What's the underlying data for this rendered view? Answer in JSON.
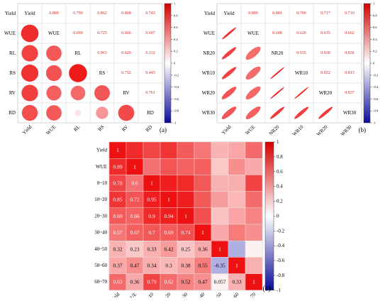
{
  "chart_data": [
    {
      "type": "heatmap",
      "panel_label": "(a)",
      "variables": [
        "Yield",
        "WUE",
        "RL",
        "RS",
        "RV",
        "RD"
      ],
      "upper_style": "numbers",
      "lower_style": "circles",
      "matrix": [
        [
          1,
          0.889,
          0.799,
          0.862,
          0.808,
          0.743
        ],
        [
          0.889,
          1,
          0.699,
          0.725,
          0.666,
          0.697
        ],
        [
          0.799,
          0.699,
          1,
          0.963,
          0.626,
          0.112
        ],
        [
          0.862,
          0.725,
          0.963,
          1,
          0.712,
          0.443
        ],
        [
          0.808,
          0.666,
          0.626,
          0.712,
          1,
          0.761
        ],
        [
          0.743,
          0.697,
          0.112,
          0.443,
          0.761,
          1
        ]
      ],
      "upper_labels": [
        [
          "0.889",
          "0.799",
          "0.862",
          "0.808",
          "0.743"
        ],
        [
          "0.699",
          "0.725",
          "0.666",
          "0.697"
        ],
        [
          "0.963",
          "0.626",
          "0.112"
        ],
        [
          "0.712",
          "0.443"
        ],
        [
          "0.761"
        ]
      ],
      "colorbar_ticks": [
        "1",
        "0.8",
        "0.6",
        "0.4",
        "0.2",
        "0",
        "-0.2",
        "-0.4",
        "-0.6",
        "-0.8",
        "-1"
      ],
      "color_range": [
        -1,
        1
      ]
    },
    {
      "type": "heatmap",
      "panel_label": "(b)",
      "variables": [
        "Yield",
        "WUE",
        "NR20",
        "WR10",
        "WR20",
        "WR30"
      ],
      "upper_style": "numbers",
      "lower_style": "ellipses",
      "matrix": [
        [
          1,
          0.889,
          0.801,
          0.79,
          0.717,
          0.71
        ],
        [
          0.889,
          1,
          0.608,
          0.62,
          0.635,
          0.662
        ],
        [
          0.801,
          0.608,
          1,
          0.935,
          0.938,
          0.836
        ],
        [
          0.79,
          0.62,
          0.935,
          1,
          0.922,
          0.813
        ],
        [
          0.717,
          0.635,
          0.938,
          0.922,
          1,
          0.837
        ],
        [
          0.71,
          0.662,
          0.836,
          0.813,
          0.837,
          1
        ]
      ],
      "upper_labels": [
        [
          "0.889",
          "0.801",
          "0.790",
          "0.717",
          "0.710"
        ],
        [
          "0.608",
          "0.620",
          "0.635",
          "0.662"
        ],
        [
          "0.935",
          "0.938",
          "0.836"
        ],
        [
          "0.922",
          "0.813"
        ],
        [
          "0.837"
        ]
      ],
      "colorbar_ticks": [
        "1",
        "0.8",
        "0.6",
        "0.4",
        "0.2",
        "0",
        "-0.2",
        "-0.4",
        "-0.6",
        "-0.8",
        "-1"
      ],
      "color_range": [
        -1,
        1
      ]
    },
    {
      "type": "heatmap",
      "panel_label": "(c)",
      "variables": [
        "Yield",
        "WUE",
        "0~10",
        "10~20",
        "20~30",
        "30~40",
        "40~50",
        "50~60",
        "60~70"
      ],
      "lower_style": "numbers_on_color",
      "matrix": [
        [
          1,
          0.89,
          0.78,
          0.85,
          0.69,
          0.57,
          0.32,
          0.37,
          0.63
        ],
        [
          0.89,
          1,
          0.6,
          0.72,
          0.66,
          0.67,
          0.23,
          0.47,
          0.36
        ],
        [
          0.78,
          0.6,
          1,
          0.95,
          0.9,
          0.7,
          0.33,
          0.34,
          0.79
        ],
        [
          0.85,
          0.72,
          0.95,
          1,
          0.94,
          0.69,
          0.42,
          0.3,
          0.62
        ],
        [
          0.69,
          0.66,
          0.9,
          0.94,
          1,
          0.74,
          0.25,
          0.38,
          0.52
        ],
        [
          0.57,
          0.67,
          0.7,
          0.69,
          0.74,
          1,
          0.36,
          0.55,
          0.47
        ],
        [
          0.32,
          0.23,
          0.33,
          0.42,
          0.25,
          0.36,
          1,
          -0.35,
          0.057
        ],
        [
          0.37,
          0.47,
          0.34,
          0.3,
          0.38,
          0.55,
          -0.35,
          1,
          0.33
        ],
        [
          0.63,
          0.36,
          0.79,
          0.62,
          0.52,
          0.47,
          0.057,
          0.33,
          1
        ]
      ],
      "lower_labels": [
        [
          "1"
        ],
        [
          "0.89",
          "1"
        ],
        [
          "0.78",
          "0.6",
          "1"
        ],
        [
          "0.85",
          "0.72",
          "0.95",
          "1"
        ],
        [
          "0.69",
          "0.66",
          "0.9",
          "0.94",
          "1"
        ],
        [
          "0.57",
          "0.67",
          "0.7",
          "0.69",
          "0.74",
          "1"
        ],
        [
          "0.32",
          "0.23",
          "0.33",
          "0.42",
          "0.25",
          "0.36",
          "1"
        ],
        [
          "0.37",
          "0.47",
          "0.34",
          "0.3",
          "0.38",
          "0.55",
          "-0.35",
          "1"
        ],
        [
          "0.63",
          "0.36",
          "0.79",
          "0.62",
          "0.52",
          "0.47",
          "0.057",
          "0.33",
          "1"
        ]
      ],
      "colorbar_ticks": [
        "1",
        "0.8",
        "0.6",
        "0.4",
        "0.2",
        "0",
        "-0.2",
        "-0.4",
        "-0.6",
        "-0.8",
        "-1"
      ],
      "color_range": [
        -1,
        1
      ]
    }
  ],
  "colors": {
    "positive": "#ee1111",
    "neutral": "#ffffff",
    "negative": "#1a1aa8",
    "grid": "#cfcfcf",
    "upper_text": "#dd2222"
  }
}
